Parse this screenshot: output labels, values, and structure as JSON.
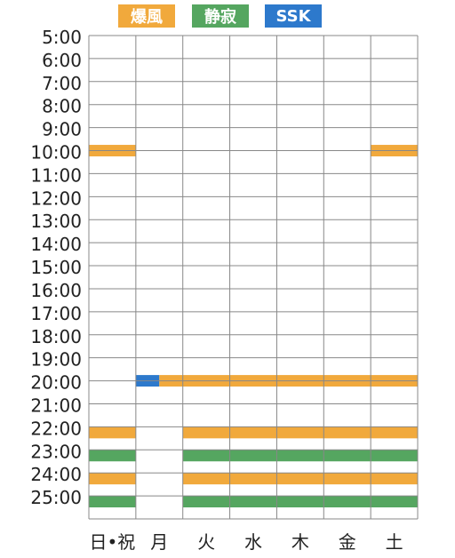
{
  "legend": [
    {
      "label": "爆風",
      "color": "#F1A93C"
    },
    {
      "label": "静寂",
      "color": "#55A660"
    },
    {
      "label": "SSK",
      "color": "#2D79CC"
    }
  ],
  "chart_data": {
    "type": "timetable",
    "days": [
      "日•祝",
      "月",
      "火",
      "水",
      "木",
      "金",
      "土"
    ],
    "hours": [
      "5:00",
      "6:00",
      "7:00",
      "8:00",
      "9:00",
      "10:00",
      "11:00",
      "12:00",
      "13:00",
      "14:00",
      "15:00",
      "16:00",
      "17:00",
      "18:00",
      "19:00",
      "20:00",
      "21:00",
      "22:00",
      "23:00",
      "24:00",
      "25:00"
    ],
    "y_range": [
      5,
      26
    ],
    "blocks": [
      {
        "program": "爆風",
        "day": 0,
        "start": 9.75,
        "end": 10.25
      },
      {
        "program": "爆風",
        "day": 6,
        "start": 9.75,
        "end": 10.25
      },
      {
        "program": "SSK",
        "day": 1,
        "start": 19.75,
        "end": 20.25
      },
      {
        "program": "爆風",
        "day": 1,
        "start": 19.75,
        "end": 20.25
      },
      {
        "program": "爆風",
        "day": 2,
        "start": 19.75,
        "end": 20.25
      },
      {
        "program": "爆風",
        "day": 3,
        "start": 19.75,
        "end": 20.25
      },
      {
        "program": "爆風",
        "day": 4,
        "start": 19.75,
        "end": 20.25
      },
      {
        "program": "爆風",
        "day": 5,
        "start": 19.75,
        "end": 20.25
      },
      {
        "program": "爆風",
        "day": 6,
        "start": 19.75,
        "end": 20.25
      },
      {
        "program": "爆風",
        "day": 0,
        "start": 22.0,
        "end": 22.5
      },
      {
        "program": "爆風",
        "day": 2,
        "start": 22.0,
        "end": 22.5
      },
      {
        "program": "爆風",
        "day": 3,
        "start": 22.0,
        "end": 22.5
      },
      {
        "program": "爆風",
        "day": 4,
        "start": 22.0,
        "end": 22.5
      },
      {
        "program": "爆風",
        "day": 5,
        "start": 22.0,
        "end": 22.5
      },
      {
        "program": "爆風",
        "day": 6,
        "start": 22.0,
        "end": 22.5
      },
      {
        "program": "静寂",
        "day": 0,
        "start": 23.0,
        "end": 23.5
      },
      {
        "program": "静寂",
        "day": 2,
        "start": 23.0,
        "end": 23.5
      },
      {
        "program": "静寂",
        "day": 3,
        "start": 23.0,
        "end": 23.5
      },
      {
        "program": "静寂",
        "day": 4,
        "start": 23.0,
        "end": 23.5
      },
      {
        "program": "静寂",
        "day": 5,
        "start": 23.0,
        "end": 23.5
      },
      {
        "program": "静寂",
        "day": 6,
        "start": 23.0,
        "end": 23.5
      },
      {
        "program": "爆風",
        "day": 0,
        "start": 24.0,
        "end": 24.5
      },
      {
        "program": "爆風",
        "day": 2,
        "start": 24.0,
        "end": 24.5
      },
      {
        "program": "爆風",
        "day": 3,
        "start": 24.0,
        "end": 24.5
      },
      {
        "program": "爆風",
        "day": 4,
        "start": 24.0,
        "end": 24.5
      },
      {
        "program": "爆風",
        "day": 5,
        "start": 24.0,
        "end": 24.5
      },
      {
        "program": "爆風",
        "day": 6,
        "start": 24.0,
        "end": 24.5
      },
      {
        "program": "静寂",
        "day": 0,
        "start": 25.0,
        "end": 25.5
      },
      {
        "program": "静寂",
        "day": 2,
        "start": 25.0,
        "end": 25.5
      },
      {
        "program": "静寂",
        "day": 3,
        "start": 25.0,
        "end": 25.5
      },
      {
        "program": "静寂",
        "day": 4,
        "start": 25.0,
        "end": 25.5
      },
      {
        "program": "静寂",
        "day": 5,
        "start": 25.0,
        "end": 25.5
      },
      {
        "program": "静寂",
        "day": 6,
        "start": 25.0,
        "end": 25.5
      }
    ]
  }
}
